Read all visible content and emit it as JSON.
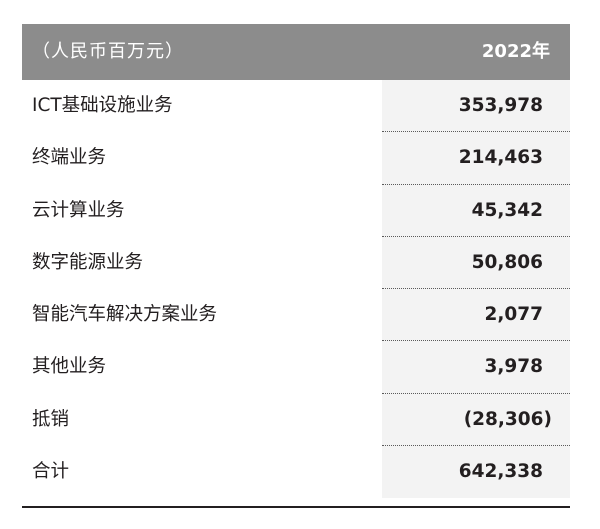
{
  "header": {
    "unit_label": "（人民币百万元）",
    "year_label": "2022年"
  },
  "rows": [
    {
      "label": "ICT基础设施业务",
      "value": "353,978"
    },
    {
      "label": "终端业务",
      "value": "214,463"
    },
    {
      "label": "云计算业务",
      "value": "45,342"
    },
    {
      "label": "数字能源业务",
      "value": "50,806"
    },
    {
      "label": "智能汽车解决方案业务",
      "value": "2,077"
    },
    {
      "label": "其他业务",
      "value": "3,978"
    },
    {
      "label": "抵销",
      "value": "(28,306)"
    },
    {
      "label": "合计",
      "value": "642,338"
    }
  ],
  "colors": {
    "header_bg": "#8c8c8c",
    "value_column_bg": "#f3f3f3",
    "text": "#231f20"
  }
}
